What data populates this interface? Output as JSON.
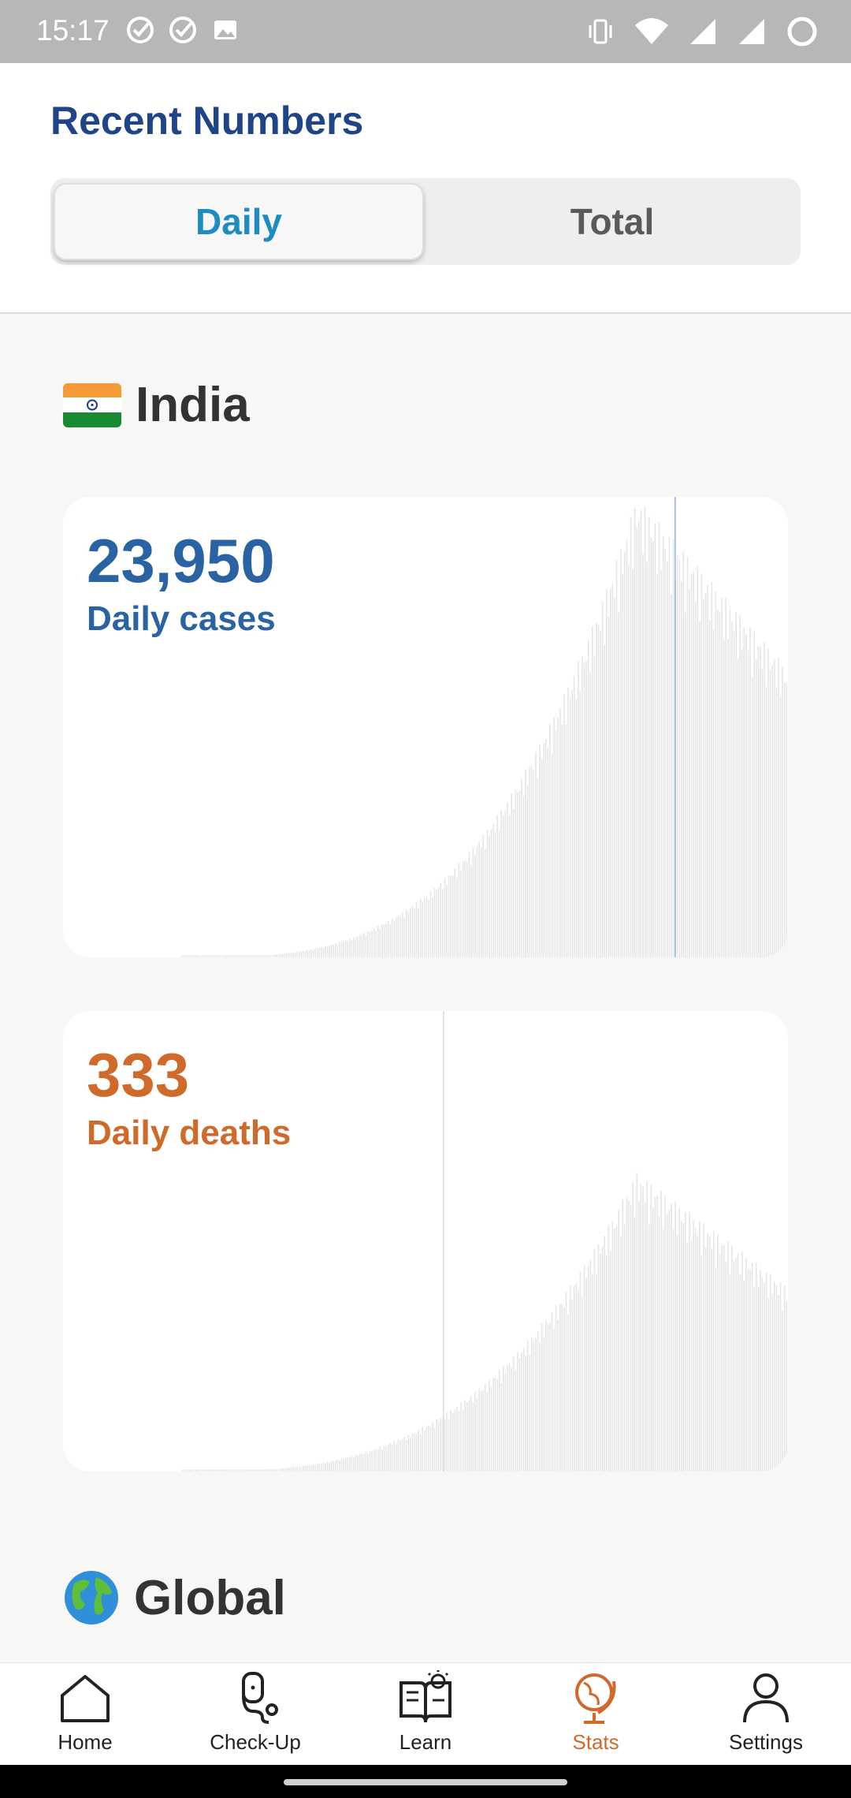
{
  "status_bar": {
    "time": "15:17",
    "icons_left": [
      "check-circle-icon",
      "check-circle-icon",
      "image-icon"
    ],
    "icons_right": [
      "vibrate-icon",
      "wifi-icon",
      "signal-icon",
      "signal-icon",
      "loading-icon"
    ]
  },
  "header": {
    "title": "Recent Numbers",
    "tabs": [
      {
        "label": "Daily",
        "selected": true
      },
      {
        "label": "Total",
        "selected": false
      }
    ]
  },
  "india": {
    "name": "India",
    "cases": {
      "value": "23,950",
      "label": "Daily cases",
      "color": "#2a63a4"
    },
    "deaths": {
      "value": "333",
      "label": "Daily deaths",
      "color": "#cf6a2b"
    }
  },
  "global": {
    "name": "Global"
  },
  "nav": {
    "items": [
      {
        "label": "Home",
        "icon": "home-icon",
        "active": false
      },
      {
        "label": "Check-Up",
        "icon": "stethoscope-icon",
        "active": false
      },
      {
        "label": "Learn",
        "icon": "book-icon",
        "active": false
      },
      {
        "label": "Stats",
        "icon": "globe-icon",
        "active": true
      },
      {
        "label": "Settings",
        "icon": "person-icon",
        "active": false
      }
    ],
    "active_color": "#d2692a"
  }
}
